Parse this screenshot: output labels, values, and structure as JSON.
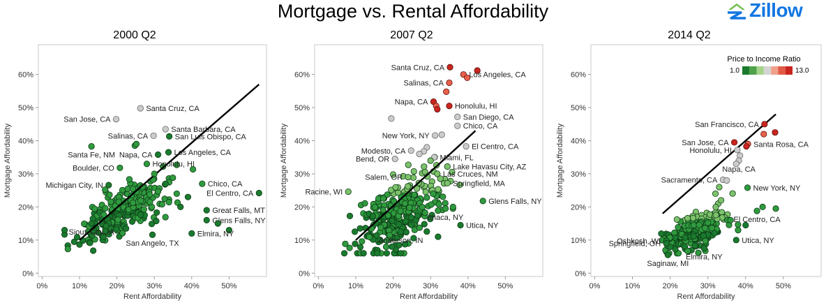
{
  "header": {
    "title": "Mortgage vs. Rental Affordability",
    "logo_text": "Zillow"
  },
  "colors": {
    "green_dark": "#1a7a2e",
    "green_mid": "#2f9a3e",
    "green_light": "#7dc26b",
    "grey": "#cccccc",
    "red_light": "#e8604c",
    "red_dark": "#c8261f",
    "logo_blue": "#1277e1",
    "logo_green": "#6ebe44"
  },
  "legend": {
    "title": "Price to Income Ratio",
    "min_label": "1.0",
    "max_label": "13.0",
    "stops": [
      "#1a7a2e",
      "#4ea24a",
      "#a6d38b",
      "#d4d4d4",
      "#f0a08a",
      "#e25a45",
      "#c8261f"
    ]
  },
  "chart_data": [
    {
      "type": "scatter",
      "title": "2000 Q2",
      "xlabel": "Rent Affordability",
      "ylabel": "Mortgage Affordability",
      "xlim": [
        -0.01,
        0.6
      ],
      "ylim": [
        -0.01,
        0.69
      ],
      "xticks": [
        "0%",
        "10%",
        "20%",
        "30%",
        "40%",
        "50%"
      ],
      "yticks": [
        "0%",
        "10%",
        "20%",
        "30%",
        "40%",
        "50%",
        "60%"
      ],
      "trendline": [
        [
          0.1,
          0.1
        ],
        [
          0.58,
          0.57
        ]
      ],
      "cloud_seed": 11,
      "cloud_count": 260,
      "cloud_center": [
        0.22,
        0.19
      ],
      "cloud_spread": [
        0.06,
        0.035
      ],
      "cloud_colors": [
        "green_dark",
        "green_mid"
      ],
      "points": [
        {
          "x": 0.263,
          "y": 0.498,
          "c": "grey",
          "label": "Santa Cruz, CA"
        },
        {
          "x": 0.198,
          "y": 0.465,
          "c": "grey",
          "label": "San Jose, CA"
        },
        {
          "x": 0.33,
          "y": 0.435,
          "c": "grey",
          "label": "Santa Barbara, CA"
        },
        {
          "x": 0.298,
          "y": 0.415,
          "c": "grey",
          "label": "Salinas, CA"
        },
        {
          "x": 0.34,
          "y": 0.413,
          "c": "green_dark",
          "label": "San Luis Obispo, CA"
        },
        {
          "x": 0.248,
          "y": 0.385,
          "c": "green_mid",
          "label": ""
        },
        {
          "x": 0.252,
          "y": 0.39,
          "c": "green_mid",
          "label": ""
        },
        {
          "x": 0.132,
          "y": 0.383,
          "c": "green_mid",
          "label": "Santa Fe, NM"
        },
        {
          "x": 0.31,
          "y": 0.358,
          "c": "green_dark",
          "label": "Napa, CA"
        },
        {
          "x": 0.338,
          "y": 0.365,
          "c": "green_dark",
          "label": "Los Angeles, CA"
        },
        {
          "x": 0.208,
          "y": 0.318,
          "c": "green_mid",
          "label": "Boulder, CO"
        },
        {
          "x": 0.28,
          "y": 0.33,
          "c": "green_mid",
          "label": "Honolulu, HI"
        },
        {
          "x": 0.178,
          "y": 0.266,
          "c": "green_dark",
          "label": "Michigan City, IN"
        },
        {
          "x": 0.428,
          "y": 0.27,
          "c": "green_mid",
          "label": "Chico, CA"
        },
        {
          "x": 0.58,
          "y": 0.242,
          "c": "green_dark",
          "label": "El Centro, CA"
        },
        {
          "x": 0.44,
          "y": 0.19,
          "c": "green_dark",
          "label": "Great Falls, MT"
        },
        {
          "x": 0.44,
          "y": 0.16,
          "c": "green_dark",
          "label": "Glens Falls, NY"
        },
        {
          "x": 0.5,
          "y": 0.13,
          "c": "green_dark",
          "label": ""
        },
        {
          "x": 0.4,
          "y": 0.12,
          "c": "green_dark",
          "label": "Elmira, NY"
        },
        {
          "x": 0.295,
          "y": 0.116,
          "c": "green_dark",
          "label": "San Angelo, TX"
        },
        {
          "x": 0.132,
          "y": 0.15,
          "c": "green_dark",
          "label": "Sioux City, IA"
        },
        {
          "x": 0.47,
          "y": 0.15,
          "c": "green_dark",
          "label": ""
        },
        {
          "x": 0.39,
          "y": 0.23,
          "c": "green_dark",
          "label": ""
        },
        {
          "x": 0.36,
          "y": 0.24,
          "c": "green_mid",
          "label": ""
        },
        {
          "x": 0.37,
          "y": 0.2,
          "c": "green_dark",
          "label": ""
        },
        {
          "x": 0.3,
          "y": 0.3,
          "c": "green_mid",
          "label": ""
        },
        {
          "x": 0.33,
          "y": 0.27,
          "c": "green_dark",
          "label": ""
        }
      ],
      "label_pos": {
        "Santa Cruz, CA": "r",
        "San Jose, CA": "l",
        "Santa Barbara, CA": "r",
        "Salinas, CA": "l",
        "San Luis Obispo, CA": "r",
        "Santa Fe, NM": "b",
        "Napa, CA": "l",
        "Los Angeles, CA": "r",
        "Boulder, CO": "l",
        "Honolulu, HI": "r",
        "Michigan City, IN": "l",
        "Chico, CA": "r",
        "El Centro, CA": "l",
        "Great Falls, MT": "r",
        "Glens Falls, NY": "r",
        "Elmira, NY": "r",
        "San Angelo, TX": "b",
        "Sioux City, IA": "b"
      }
    },
    {
      "type": "scatter",
      "title": "2007 Q2",
      "xlabel": "Rent Affordability",
      "ylabel": "Mortgage Affordability",
      "xlim": [
        -0.01,
        0.6
      ],
      "ylim": [
        -0.01,
        0.69
      ],
      "xticks": [
        "0%",
        "10%",
        "20%",
        "30%",
        "40%",
        "50%"
      ],
      "yticks": [
        "0%",
        "10%",
        "20%",
        "30%",
        "40%",
        "50%",
        "60%"
      ],
      "trendline": [
        [
          0.1,
          0.1
        ],
        [
          0.42,
          0.43
        ]
      ],
      "cloud_seed": 27,
      "cloud_count": 300,
      "cloud_center": [
        0.21,
        0.18
      ],
      "cloud_spread": [
        0.055,
        0.05
      ],
      "cloud_colors": [
        "green_dark",
        "green_mid",
        "green_light"
      ],
      "points": [
        {
          "x": 0.352,
          "y": 0.622,
          "c": "red_dark",
          "label": "Santa Cruz, CA"
        },
        {
          "x": 0.425,
          "y": 0.612,
          "c": "red_dark",
          "label": ""
        },
        {
          "x": 0.388,
          "y": 0.6,
          "c": "red_light",
          "label": "Los Angeles, CA"
        },
        {
          "x": 0.398,
          "y": 0.59,
          "c": "red_light",
          "label": ""
        },
        {
          "x": 0.35,
          "y": 0.575,
          "c": "red_light",
          "label": "Salinas, CA"
        },
        {
          "x": 0.342,
          "y": 0.548,
          "c": "red_light",
          "label": ""
        },
        {
          "x": 0.308,
          "y": 0.518,
          "c": "red_dark",
          "label": "Napa, CA"
        },
        {
          "x": 0.315,
          "y": 0.505,
          "c": "red_light",
          "label": ""
        },
        {
          "x": 0.35,
          "y": 0.505,
          "c": "red_dark",
          "label": "Honolulu, HI"
        },
        {
          "x": 0.318,
          "y": 0.495,
          "c": "red_dark",
          "label": ""
        },
        {
          "x": 0.372,
          "y": 0.472,
          "c": "grey",
          "label": "San Diego, CA"
        },
        {
          "x": 0.195,
          "y": 0.467,
          "c": "grey",
          "label": ""
        },
        {
          "x": 0.372,
          "y": 0.445,
          "c": "grey",
          "label": "Chico, CA"
        },
        {
          "x": 0.312,
          "y": 0.416,
          "c": "grey",
          "label": "New York, NY"
        },
        {
          "x": 0.33,
          "y": 0.418,
          "c": "grey",
          "label": ""
        },
        {
          "x": 0.395,
          "y": 0.383,
          "c": "grey",
          "label": "El Centro, CA"
        },
        {
          "x": 0.248,
          "y": 0.37,
          "c": "grey",
          "label": "Modesto, CA"
        },
        {
          "x": 0.31,
          "y": 0.35,
          "c": "grey",
          "label": "Miami, FL"
        },
        {
          "x": 0.205,
          "y": 0.345,
          "c": "grey",
          "label": "Bend, OR"
        },
        {
          "x": 0.345,
          "y": 0.322,
          "c": "green_light",
          "label": "Lake Havasu City, AZ"
        },
        {
          "x": 0.318,
          "y": 0.3,
          "c": "green_light",
          "label": "Las Cruces, NM"
        },
        {
          "x": 0.24,
          "y": 0.29,
          "c": "green_light",
          "label": "Salem, OR"
        },
        {
          "x": 0.345,
          "y": 0.272,
          "c": "green_light",
          "label": "Springfield, MA"
        },
        {
          "x": 0.08,
          "y": 0.246,
          "c": "green_light",
          "label": "Racine, WI"
        },
        {
          "x": 0.44,
          "y": 0.218,
          "c": "green_mid",
          "label": "Glens Falls, NY"
        },
        {
          "x": 0.34,
          "y": 0.195,
          "c": "green_mid",
          "label": "Ithaca, NY"
        },
        {
          "x": 0.38,
          "y": 0.145,
          "c": "green_dark",
          "label": "Utica, NY"
        },
        {
          "x": 0.22,
          "y": 0.125,
          "c": "green_dark",
          "label": "Anderson, IN"
        },
        {
          "x": 0.36,
          "y": 0.2,
          "c": "green_mid",
          "label": ""
        },
        {
          "x": 0.32,
          "y": 0.11,
          "c": "green_dark",
          "label": ""
        },
        {
          "x": 0.29,
          "y": 0.38,
          "c": "grey",
          "label": ""
        },
        {
          "x": 0.282,
          "y": 0.368,
          "c": "grey",
          "label": ""
        },
        {
          "x": 0.27,
          "y": 0.36,
          "c": "grey",
          "label": ""
        },
        {
          "x": 0.3,
          "y": 0.34,
          "c": "green_light",
          "label": ""
        }
      ],
      "label_pos": {
        "Santa Cruz, CA": "l",
        "Los Angeles, CA": "r",
        "Salinas, CA": "l",
        "Napa, CA": "l",
        "Honolulu, HI": "r",
        "San Diego, CA": "r",
        "Chico, CA": "r",
        "New York, NY": "l",
        "El Centro, CA": "r",
        "Modesto, CA": "l",
        "Miami, FL": "r",
        "Bend, OR": "l",
        "Lake Havasu City, AZ": "r",
        "Las Cruces, NM": "r",
        "Salem, OR": "l",
        "Springfield, MA": "r",
        "Racine, WI": "l",
        "Glens Falls, NY": "r",
        "Ithaca, NY": "b",
        "Utica, NY": "r",
        "Anderson, IN": "b"
      }
    },
    {
      "type": "scatter",
      "title": "2014 Q2",
      "xlabel": "Rent Affordability",
      "ylabel": "Mortgage Affordability",
      "xlim": [
        -0.01,
        0.6
      ],
      "ylim": [
        -0.01,
        0.69
      ],
      "xticks": [
        "0%",
        "10%",
        "20%",
        "30%",
        "40%",
        "50%"
      ],
      "yticks": [
        "0%",
        "10%",
        "20%",
        "30%",
        "40%",
        "50%",
        "60%"
      ],
      "trendline": [
        [
          0.18,
          0.18
        ],
        [
          0.48,
          0.48
        ]
      ],
      "cloud_seed": 53,
      "cloud_count": 290,
      "cloud_center": [
        0.27,
        0.13
      ],
      "cloud_spread": [
        0.04,
        0.025
      ],
      "cloud_colors": [
        "green_dark",
        "green_mid",
        "green_light"
      ],
      "points": [
        {
          "x": 0.45,
          "y": 0.45,
          "c": "red_dark",
          "label": "San Francisco, CA"
        },
        {
          "x": 0.478,
          "y": 0.425,
          "c": "red_dark",
          "label": ""
        },
        {
          "x": 0.448,
          "y": 0.42,
          "c": "red_light",
          "label": ""
        },
        {
          "x": 0.37,
          "y": 0.395,
          "c": "red_dark",
          "label": "San Jose, CA"
        },
        {
          "x": 0.406,
          "y": 0.39,
          "c": "red_light",
          "label": "Santa Rosa, CA"
        },
        {
          "x": 0.402,
          "y": 0.383,
          "c": "red_dark",
          "label": ""
        },
        {
          "x": 0.378,
          "y": 0.372,
          "c": "grey",
          "label": "Honolulu, HI"
        },
        {
          "x": 0.385,
          "y": 0.355,
          "c": "grey",
          "label": ""
        },
        {
          "x": 0.382,
          "y": 0.34,
          "c": "grey",
          "label": "Napa, CA"
        },
        {
          "x": 0.375,
          "y": 0.33,
          "c": "grey",
          "label": ""
        },
        {
          "x": 0.34,
          "y": 0.282,
          "c": "grey",
          "label": "Sacramento, CA"
        },
        {
          "x": 0.35,
          "y": 0.28,
          "c": "grey",
          "label": ""
        },
        {
          "x": 0.405,
          "y": 0.258,
          "c": "green_mid",
          "label": "New York, NY"
        },
        {
          "x": 0.43,
          "y": 0.188,
          "c": "green_mid",
          "label": "El Centro, CA"
        },
        {
          "x": 0.445,
          "y": 0.2,
          "c": "green_mid",
          "label": ""
        },
        {
          "x": 0.48,
          "y": 0.195,
          "c": "green_mid",
          "label": ""
        },
        {
          "x": 0.4,
          "y": 0.145,
          "c": "green_dark",
          "label": ""
        },
        {
          "x": 0.19,
          "y": 0.098,
          "c": "green_dark",
          "label": "Oshkosh, WI"
        },
        {
          "x": 0.19,
          "y": 0.09,
          "c": "green_dark",
          "label": "Springfield, OH"
        },
        {
          "x": 0.194,
          "y": 0.055,
          "c": "green_dark",
          "label": "Saginaw, MI"
        },
        {
          "x": 0.29,
          "y": 0.075,
          "c": "green_dark",
          "label": "Elmira, NY"
        },
        {
          "x": 0.375,
          "y": 0.1,
          "c": "green_dark",
          "label": "Utica, NY"
        },
        {
          "x": 0.38,
          "y": 0.13,
          "c": "green_mid",
          "label": ""
        },
        {
          "x": 0.36,
          "y": 0.16,
          "c": "green_mid",
          "label": ""
        },
        {
          "x": 0.32,
          "y": 0.24,
          "c": "green_light",
          "label": ""
        },
        {
          "x": 0.335,
          "y": 0.22,
          "c": "green_light",
          "label": ""
        },
        {
          "x": 0.33,
          "y": 0.26,
          "c": "green_light",
          "label": ""
        }
      ],
      "label_pos": {
        "San Francisco, CA": "l",
        "San Jose, CA": "l",
        "Santa Rosa, CA": "r",
        "Honolulu, HI": "l",
        "Napa, CA": "b",
        "Sacramento, CA": "l",
        "New York, NY": "r",
        "El Centro, CA": "b",
        "Oshkosh, WI": "l",
        "Springfield, OH": "l",
        "Saginaw, MI": "b",
        "Elmira, NY": "b",
        "Utica, NY": "r"
      }
    }
  ]
}
